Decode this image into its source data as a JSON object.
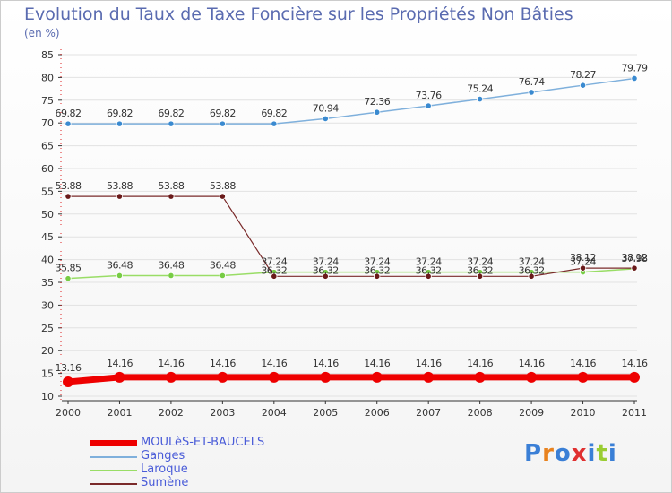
{
  "title": "Evolution du Taux de Taxe Foncière sur les Propriétés Non Bâties",
  "unit": "(en %)",
  "logo_letters": [
    "P",
    "r",
    "o",
    "x",
    "i",
    "t",
    "i"
  ],
  "logo_colors": [
    "#3a7fd6",
    "#e8821e",
    "#3a7fd6",
    "#e03030",
    "#3a7fd6",
    "#9acd32",
    "#3a7fd6"
  ],
  "chart_data": {
    "type": "line",
    "title": "Evolution du Taux de Taxe Foncière sur les Propriétés Non Bâties",
    "ylabel": "(en %)",
    "ylim": [
      10,
      85
    ],
    "yticks": [
      "10",
      "15",
      "20",
      "25",
      "30",
      "35",
      "40",
      "45",
      "50",
      "55",
      "60",
      "65",
      "70",
      "75",
      "80",
      "85"
    ],
    "categories": [
      "2000",
      "2001",
      "2002",
      "2003",
      "2004",
      "2005",
      "2006",
      "2007",
      "2008",
      "2009",
      "2010",
      "2011"
    ],
    "series": [
      {
        "name": "MOULèS-ET-BAUCELS",
        "color": "#ee0000",
        "marker": "#ee0000",
        "width": 7,
        "values": [
          13.16,
          14.16,
          14.16,
          14.16,
          14.16,
          14.16,
          14.16,
          14.16,
          14.16,
          14.16,
          14.16,
          14.16
        ],
        "labels": [
          "13.16",
          "14.16",
          "14.16",
          "14.16",
          "14.16",
          "14.16",
          "14.16",
          "14.16",
          "14.16",
          "14.16",
          "14.16",
          "14.16"
        ]
      },
      {
        "name": "Ganges",
        "color": "#7fb0dc",
        "marker": "#3a8ad0",
        "width": 1.5,
        "values": [
          69.82,
          69.82,
          69.82,
          69.82,
          69.82,
          70.94,
          72.36,
          73.76,
          75.24,
          76.74,
          78.27,
          79.79
        ],
        "labels": [
          "69.82",
          "69.82",
          "69.82",
          "69.82",
          "69.82",
          "70.94",
          "72.36",
          "73.76",
          "75.24",
          "76.74",
          "78.27",
          "79.79"
        ]
      },
      {
        "name": "Laroque",
        "color": "#99dd66",
        "marker": "#77cc44",
        "width": 1.5,
        "values": [
          35.85,
          36.48,
          36.48,
          36.48,
          37.24,
          37.24,
          37.24,
          37.24,
          37.24,
          37.24,
          37.24,
          37.98
        ],
        "labels": [
          "35.85",
          "36.48",
          "36.48",
          "36.48",
          "37.24",
          "37.24",
          "37.24",
          "37.24",
          "37.24",
          "37.24",
          "37.24",
          "37.98"
        ]
      },
      {
        "name": "Sumène",
        "color": "#7a2a2a",
        "marker": "#6a1a1a",
        "width": 1.2,
        "values": [
          53.88,
          53.88,
          53.88,
          53.88,
          36.32,
          36.32,
          36.32,
          36.32,
          36.32,
          36.32,
          38.12,
          38.12
        ],
        "labels": [
          "53.88",
          "53.88",
          "53.88",
          "53.88",
          "36.32",
          "36.32",
          "36.32",
          "36.32",
          "36.32",
          "36.32",
          "38.12",
          "38.12"
        ]
      }
    ]
  }
}
